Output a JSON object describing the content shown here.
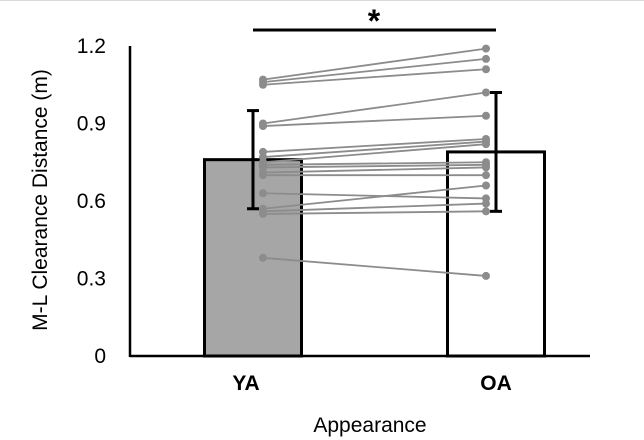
{
  "chart_data": {
    "type": "bar",
    "categories": [
      "YA",
      "OA"
    ],
    "values": [
      0.76,
      0.79
    ],
    "error": [
      0.19,
      0.23
    ],
    "xlabel": "Appearance",
    "ylabel": "M-L Clearance Distance (m)",
    "ylim": [
      0,
      1.2
    ],
    "yticks": [
      "0",
      "0.3",
      "0.6",
      "0.9",
      "1.2"
    ],
    "significance": "*",
    "bar_colors": [
      "#a6a6a6",
      "#ffffff"
    ],
    "paired_color": "#8c8c8c",
    "paired_points": [
      [
        1.07,
        1.19
      ],
      [
        1.06,
        1.15
      ],
      [
        1.05,
        1.11
      ],
      [
        0.9,
        1.02
      ],
      [
        0.89,
        0.93
      ],
      [
        0.79,
        0.84
      ],
      [
        0.77,
        0.83
      ],
      [
        0.75,
        0.82
      ],
      [
        0.74,
        0.75
      ],
      [
        0.73,
        0.74
      ],
      [
        0.71,
        0.73
      ],
      [
        0.7,
        0.7
      ],
      [
        0.63,
        0.61
      ],
      [
        0.57,
        0.66
      ],
      [
        0.56,
        0.59
      ],
      [
        0.55,
        0.56
      ],
      [
        0.38,
        0.31
      ]
    ]
  }
}
